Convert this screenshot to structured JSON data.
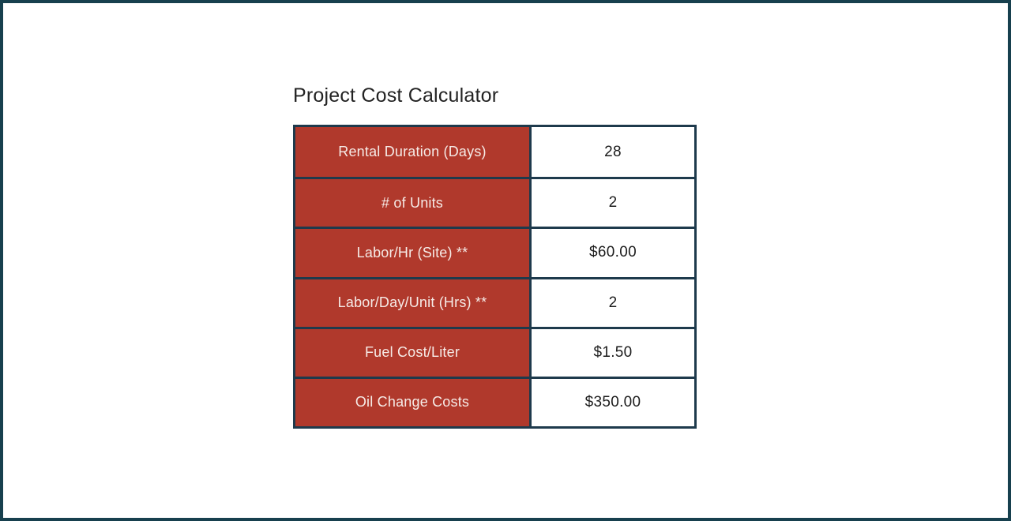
{
  "page": {
    "frame_color": "#17404e",
    "background_color": "#ffffff"
  },
  "title": "Project Cost Calculator",
  "table": {
    "label_bg_color": "#b0392c",
    "label_text_color": "#f6ebe7",
    "border_color": "#1e3a4c",
    "value_text_color": "#1c1c1c",
    "rows": [
      {
        "label": "Rental Duration (Days)",
        "value": "28"
      },
      {
        "label": "# of Units",
        "value": "2"
      },
      {
        "label": "Labor/Hr (Site) **",
        "value": "$60.00"
      },
      {
        "label": "Labor/Day/Unit (Hrs) **",
        "value": "2"
      },
      {
        "label": "Fuel Cost/Liter",
        "value": "$1.50"
      },
      {
        "label": "Oil Change Costs",
        "value": "$350.00"
      }
    ]
  }
}
